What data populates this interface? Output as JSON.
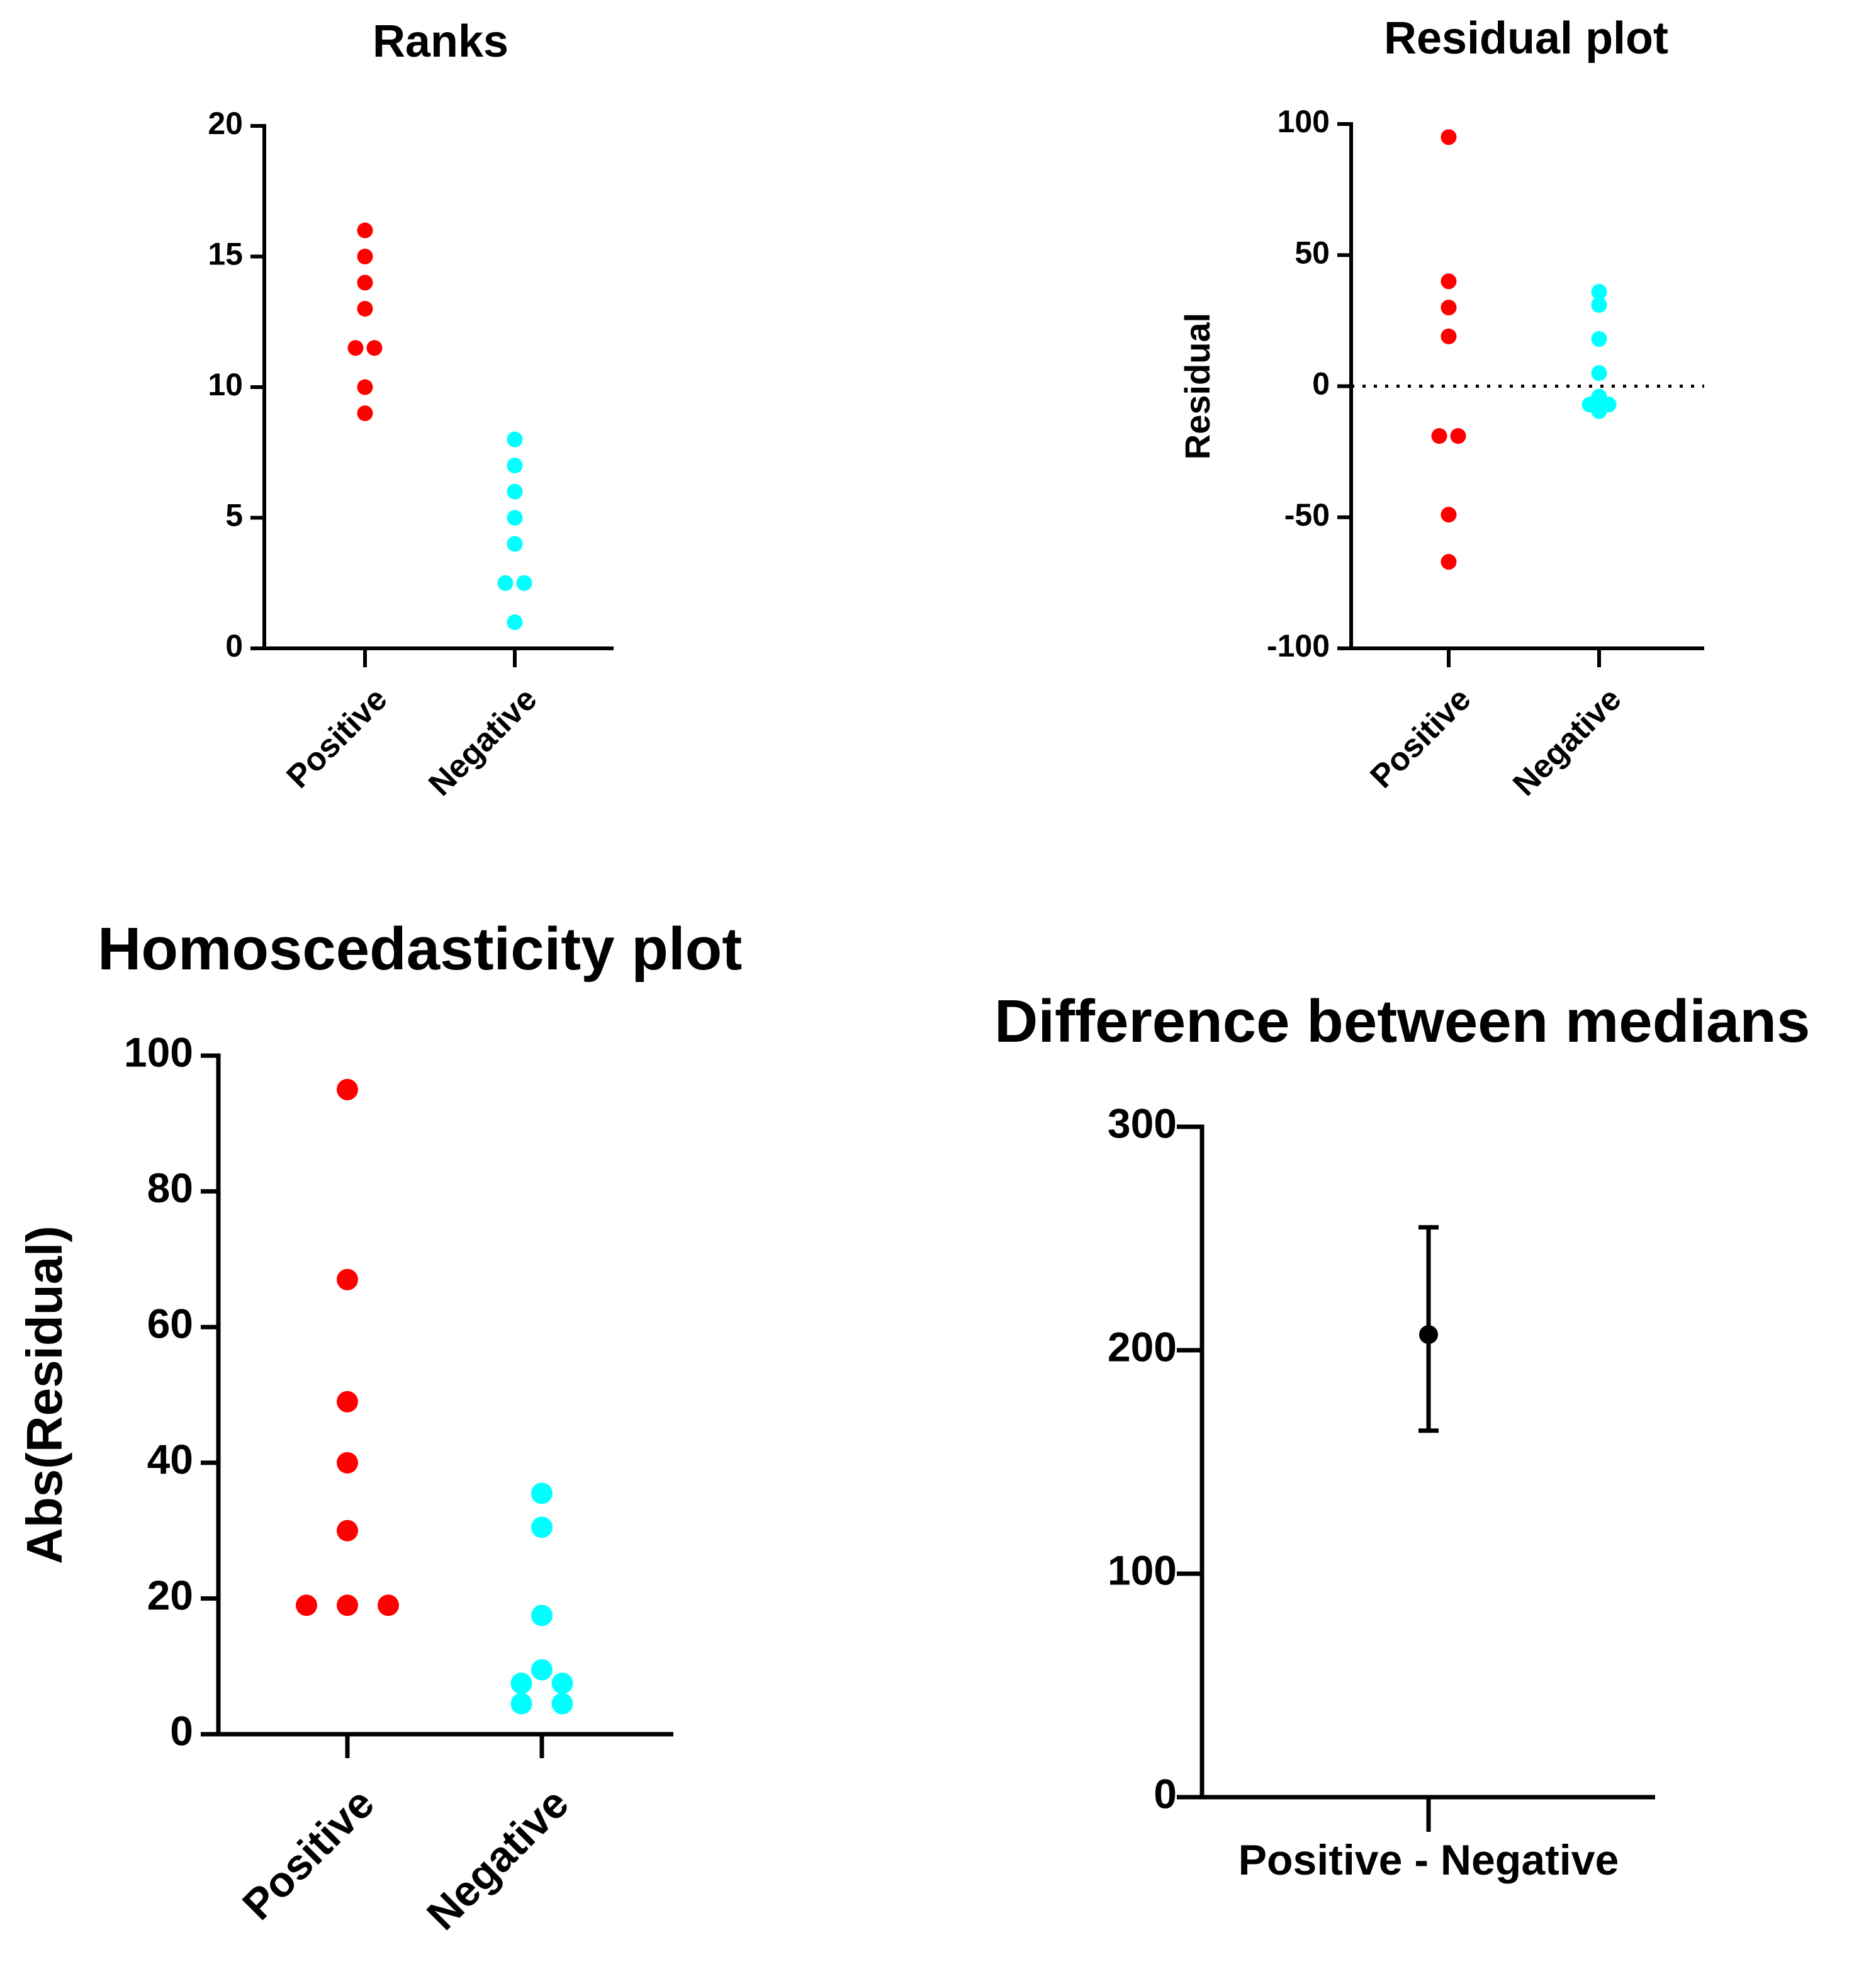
{
  "colors": {
    "positive": "#ff0000",
    "negative": "#00ffff",
    "estimate": "#000000",
    "axis": "#000000"
  },
  "chart_data": [
    {
      "id": "ranks",
      "type": "scatter",
      "title": "Ranks",
      "xlabel": "",
      "ylabel": "",
      "categories": [
        "Positive",
        "Negative"
      ],
      "ylim": [
        0,
        20
      ],
      "yticks": [
        "0",
        "5",
        "10",
        "15",
        "20"
      ],
      "series": [
        {
          "name": "Positive",
          "values": [
            16,
            15,
            14,
            13,
            11.5,
            11.5,
            10,
            9
          ]
        },
        {
          "name": "Negative",
          "values": [
            8,
            7,
            6,
            5,
            4,
            2.5,
            2.5,
            1
          ]
        }
      ]
    },
    {
      "id": "residual",
      "type": "scatter",
      "title": "Residual plot",
      "xlabel": "",
      "ylabel": "Residual",
      "categories": [
        "Positive",
        "Negative"
      ],
      "ylim": [
        -100,
        100
      ],
      "yticks": [
        "-100",
        "-50",
        "0",
        "50",
        "100"
      ],
      "reference_line": 0,
      "series": [
        {
          "name": "Positive",
          "values": [
            95,
            40,
            30,
            19,
            -19,
            -19,
            -49,
            -67
          ]
        },
        {
          "name": "Negative",
          "values": [
            36,
            31,
            18,
            5,
            -4,
            -7,
            -7,
            -9.5
          ]
        }
      ]
    },
    {
      "id": "homoscedasticity",
      "type": "scatter",
      "title": "Homoscedasticity plot",
      "xlabel": "",
      "ylabel": "Abs(Residual)",
      "categories": [
        "Positive",
        "Negative"
      ],
      "ylim": [
        0,
        100
      ],
      "yticks": [
        "0",
        "20",
        "40",
        "60",
        "80",
        "100"
      ],
      "series": [
        {
          "name": "Positive",
          "values": [
            95,
            67,
            49,
            40,
            30,
            19,
            19,
            19
          ]
        },
        {
          "name": "Negative",
          "values": [
            35.5,
            30.5,
            17.5,
            9.5,
            7.5,
            7.5,
            4.5,
            4.5
          ]
        }
      ]
    },
    {
      "id": "difference",
      "type": "scatter",
      "title": "Difference between medians",
      "xlabel": "",
      "ylabel": "",
      "categories": [
        "Positive - Negative"
      ],
      "ylim": [
        0,
        300
      ],
      "yticks": [
        "0",
        "100",
        "200",
        "300"
      ],
      "series": [
        {
          "name": "Positive - Negative",
          "values": [
            207
          ],
          "ci_lower": [
            164
          ],
          "ci_upper": [
            255
          ]
        }
      ]
    }
  ]
}
